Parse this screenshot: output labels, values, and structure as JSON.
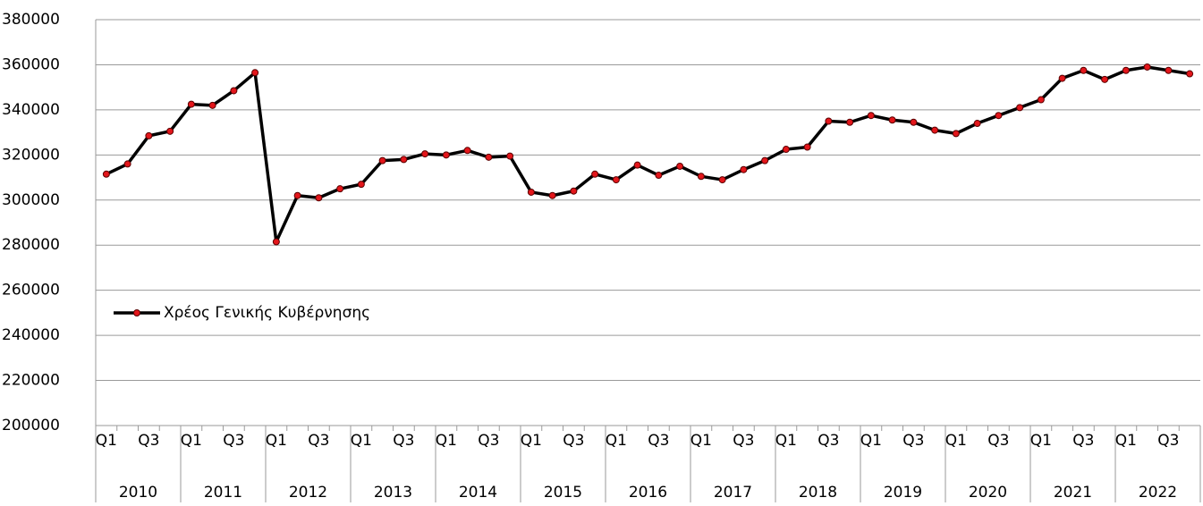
{
  "chart_data": {
    "type": "line",
    "categories": [
      "Q1",
      null,
      "Q3",
      null,
      "Q1",
      null,
      "Q3",
      null,
      "Q1",
      null,
      "Q3",
      null,
      "Q1",
      null,
      "Q3",
      null,
      "Q1",
      null,
      "Q3",
      null,
      "Q1",
      null,
      "Q3",
      null,
      "Q1",
      null,
      "Q3",
      null,
      "Q1",
      null,
      "Q3",
      null,
      "Q1",
      null,
      "Q3",
      null,
      "Q1",
      null,
      "Q3",
      null,
      "Q1",
      null,
      "Q3",
      null,
      "Q1",
      null,
      "Q3",
      null,
      "Q1",
      null,
      "Q3",
      null
    ],
    "groups": [
      "2010",
      "2011",
      "2012",
      "2013",
      "2014",
      "2015",
      "2016",
      "2017",
      "2018",
      "2019",
      "2020",
      "2021",
      "2022"
    ],
    "series": [
      {
        "name": "Χρέος Γενικής Κυβέρνησης",
        "color": "#000000",
        "marker_color": "#e3161b",
        "values": [
          311500,
          316000,
          328500,
          330500,
          342500,
          342000,
          348500,
          356500,
          281500,
          302000,
          301000,
          305000,
          307000,
          317500,
          318000,
          320500,
          320000,
          322000,
          319000,
          319500,
          303500,
          302000,
          304000,
          311500,
          309000,
          315500,
          311000,
          315000,
          310500,
          309000,
          313500,
          317500,
          322500,
          323500,
          335000,
          334500,
          337500,
          335500,
          334500,
          331000,
          329500,
          334000,
          337500,
          341000,
          344500,
          354000,
          357500,
          353500,
          357500,
          359000,
          357500,
          356000
        ]
      }
    ],
    "ylim": [
      200000,
      380000
    ],
    "yticks": [
      200000,
      220000,
      240000,
      260000,
      280000,
      300000,
      320000,
      340000,
      360000,
      380000
    ],
    "grid": true,
    "legend": "left"
  }
}
